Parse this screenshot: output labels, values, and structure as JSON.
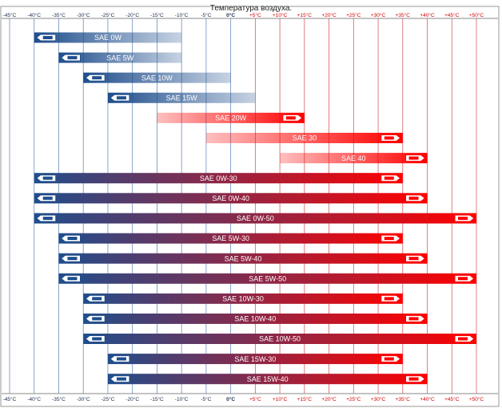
{
  "chart_data": {
    "type": "range-bar",
    "title": "Температура воздуха.",
    "xlim": [
      -45,
      50
    ],
    "x_ticks": [
      -45,
      -40,
      -35,
      -30,
      -25,
      -20,
      -15,
      -10,
      -5,
      0,
      5,
      10,
      15,
      20,
      25,
      30,
      35,
      40,
      45,
      50
    ],
    "x_tick_labels": [
      "-45°C",
      "-40°C",
      "-35°C",
      "-30°C",
      "-25°C",
      "-20°C",
      "-15°C",
      "-10°C",
      "-5°C",
      "0°C",
      "+5°C",
      "+10°C",
      "+15°C",
      "+20°C",
      "+25°C",
      "+30°C",
      "+35°C",
      "+40°C",
      "+45°C",
      "+50°C"
    ],
    "colors": {
      "cold": "#1f4e8c",
      "warm": "#ff0000",
      "cold_grid": "#6a8fbf",
      "warm_grid": "#d46060"
    },
    "bars": [
      {
        "label": "SAE 0W",
        "min": -40,
        "max": -10,
        "left_arrow": true,
        "right_arrow": false
      },
      {
        "label": "SAE 5W",
        "min": -35,
        "max": -10,
        "left_arrow": true,
        "right_arrow": false
      },
      {
        "label": "SAE 10W",
        "min": -30,
        "max": 0,
        "left_arrow": true,
        "right_arrow": false
      },
      {
        "label": "SAE 15W",
        "min": -25,
        "max": 5,
        "left_arrow": true,
        "right_arrow": false
      },
      {
        "label": "SAE 20W",
        "min": -15,
        "max": 15,
        "left_arrow": false,
        "right_arrow": true
      },
      {
        "label": "SAE 30",
        "min": -5,
        "max": 35,
        "left_arrow": false,
        "right_arrow": true
      },
      {
        "label": "SAE 40",
        "min": 10,
        "max": 40,
        "left_arrow": false,
        "right_arrow": true
      },
      {
        "label": "SAE 0W-30",
        "min": -40,
        "max": 35,
        "left_arrow": true,
        "right_arrow": true
      },
      {
        "label": "SAE 0W-40",
        "min": -40,
        "max": 40,
        "left_arrow": true,
        "right_arrow": true
      },
      {
        "label": "SAE 0W-50",
        "min": -40,
        "max": 50,
        "left_arrow": true,
        "right_arrow": true
      },
      {
        "label": "SAE 5W-30",
        "min": -35,
        "max": 35,
        "left_arrow": true,
        "right_arrow": true
      },
      {
        "label": "SAE 5W-40",
        "min": -35,
        "max": 40,
        "left_arrow": true,
        "right_arrow": true
      },
      {
        "label": "SAE 5W-50",
        "min": -35,
        "max": 50,
        "left_arrow": true,
        "right_arrow": true
      },
      {
        "label": "SAE 10W-30",
        "min": -30,
        "max": 35,
        "left_arrow": true,
        "right_arrow": true
      },
      {
        "label": "SAE 10W-40",
        "min": -30,
        "max": 40,
        "left_arrow": true,
        "right_arrow": true
      },
      {
        "label": "SAE 10W-50",
        "min": -30,
        "max": 50,
        "left_arrow": true,
        "right_arrow": true
      },
      {
        "label": "SAE 15W-30",
        "min": -25,
        "max": 35,
        "left_arrow": true,
        "right_arrow": true
      },
      {
        "label": "SAE 15W-40",
        "min": -25,
        "max": 40,
        "left_arrow": true,
        "right_arrow": true
      }
    ]
  }
}
